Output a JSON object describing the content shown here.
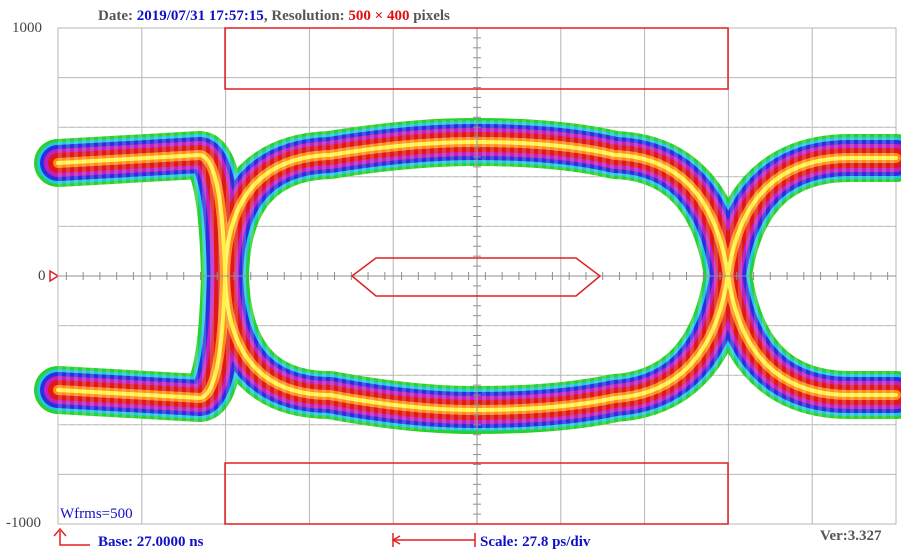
{
  "header": {
    "date_label": "Date:",
    "date_value": "2019/07/31 17:57:15",
    "resolution_label": ", Resolution:",
    "resolution_value": "500 × 400",
    "resolution_unit": "pixels"
  },
  "axis": {
    "y_top": "1000",
    "y_mid": "0",
    "y_bottom": "-1000"
  },
  "overlay": {
    "wfrms": "Wfrms=500",
    "version": "Ver:3.327"
  },
  "footer": {
    "base": "Base: 27.0000 ns",
    "scale": "Scale: 27.8 ps/div"
  },
  "colors": {
    "grid": "#b4b4b4",
    "mask": "#e02020",
    "label_blue": "#1010c8",
    "value_red": "#e01010"
  }
}
